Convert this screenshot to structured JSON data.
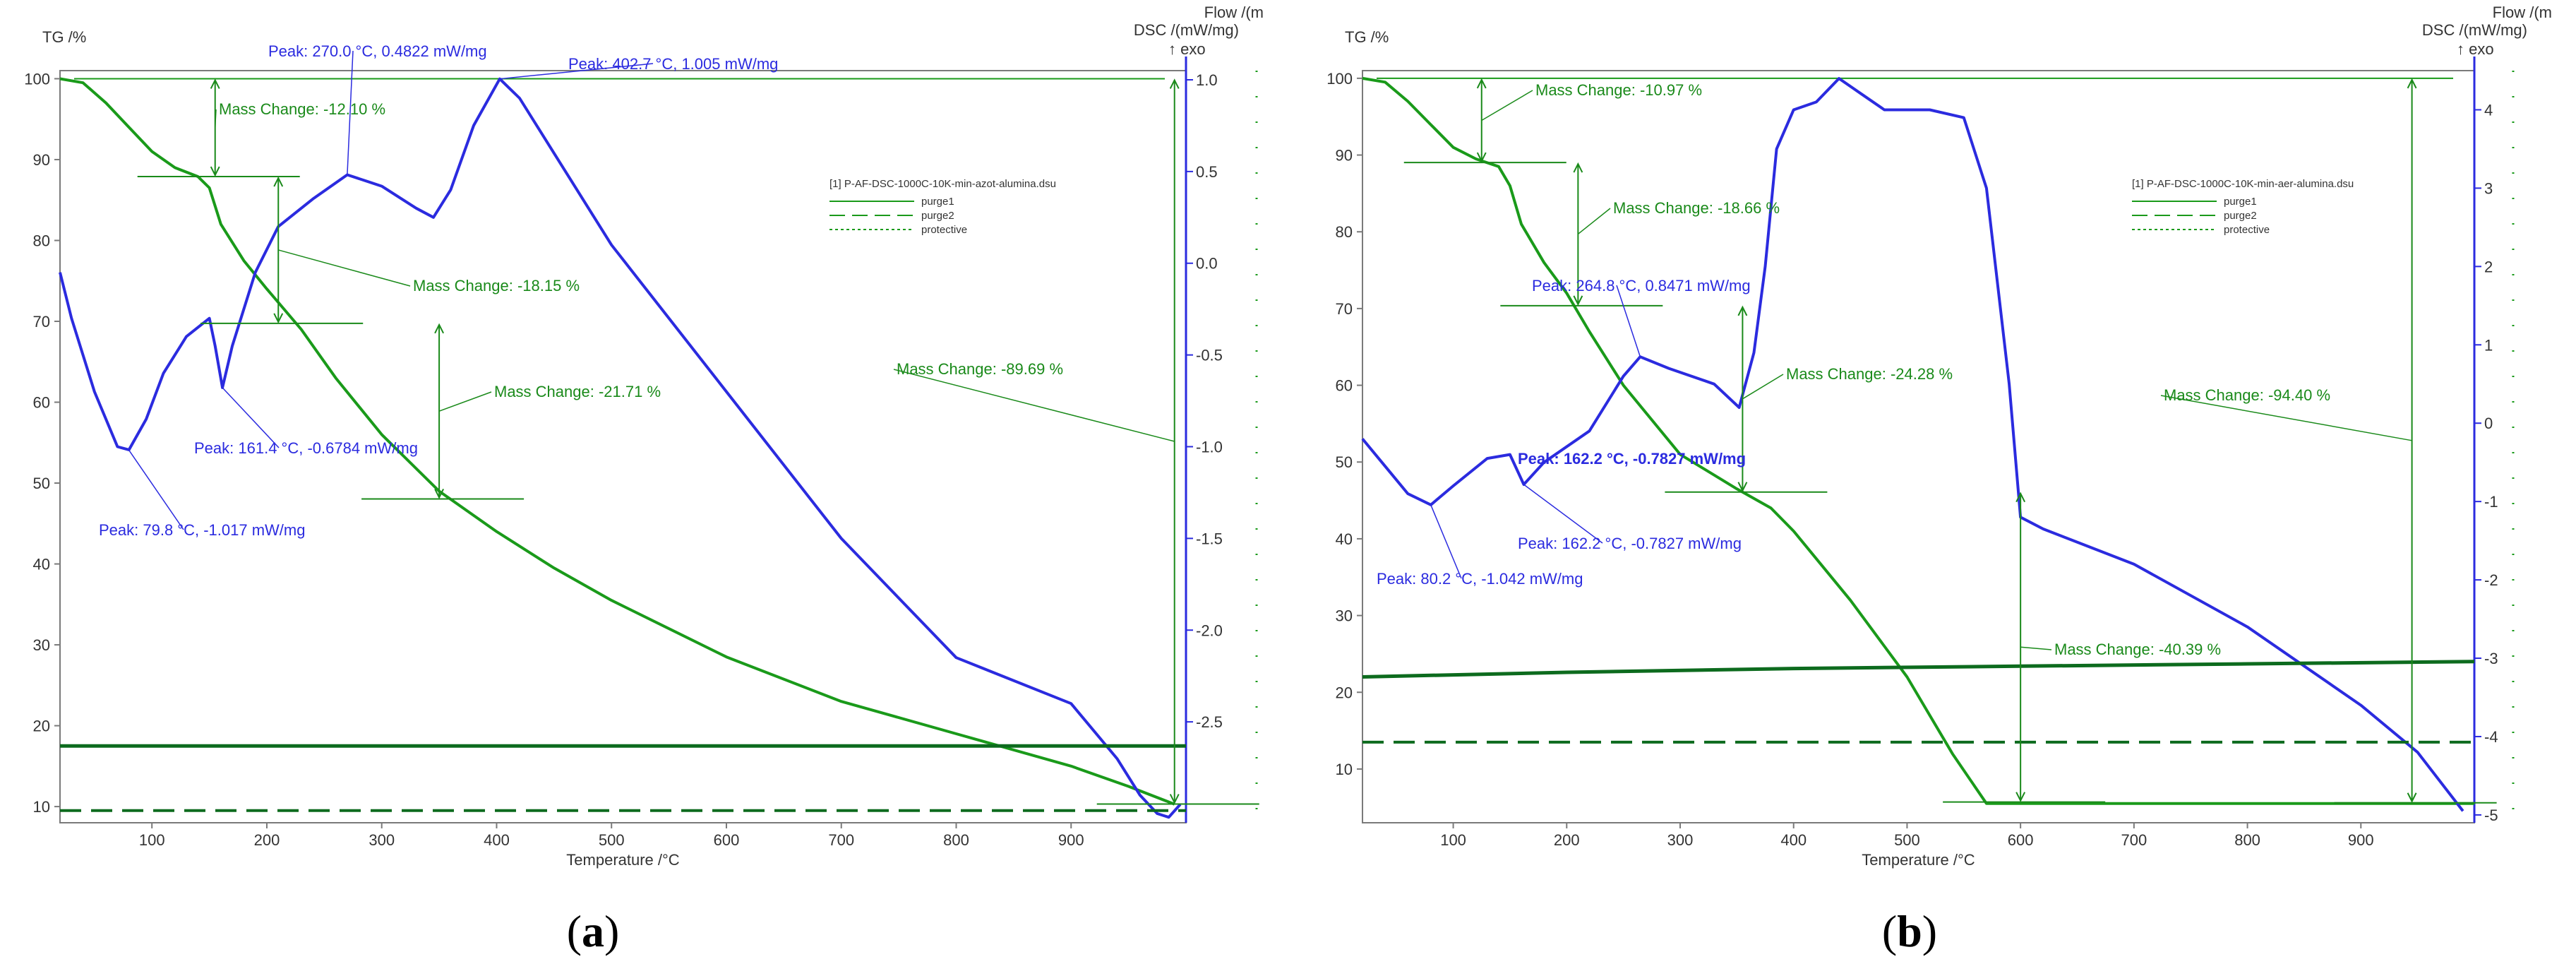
{
  "colors": {
    "tg": "#1a9a1a",
    "dsc": "#2b2bdf",
    "base": "#0d6b1e",
    "frame": "#7a7a7a",
    "ann_green": "#1a8a1a",
    "ann_blue": "#2b2bdf"
  },
  "chart_data": [
    {
      "type": "line",
      "panel_label_text": "a",
      "xlabel": "Temperature /°C",
      "ylabel_left": "TG /%",
      "ylabel_right_1": "Flow /(m",
      "ylabel_right_2": "DSC /(mW/mg)",
      "ylabel_right_3": "↑ exo",
      "xlim": [
        20,
        1000
      ],
      "ylim_left": [
        8,
        101
      ],
      "ylim_right": [
        -3.05,
        1.05
      ],
      "x_ticks": [
        100,
        200,
        300,
        400,
        500,
        600,
        700,
        800,
        900
      ],
      "y_left_ticks": [
        100,
        90,
        80,
        70,
        60,
        50,
        40,
        30,
        20,
        10
      ],
      "y_right_ticks": [
        1.0,
        0.5,
        0.0,
        -0.5,
        -1.0,
        -1.5,
        -2.0,
        -2.5
      ],
      "y_right_tick_labels": [
        "1.0",
        "0.5",
        "0.0",
        "-0.5",
        "-1.0",
        "-1.5",
        "-2.0",
        "-2.5"
      ],
      "legend": {
        "file": "[1] P-AF-DSC-1000C-10K-min-azot-alumina.dsu",
        "entries": [
          "purge1",
          "purge2",
          "protective"
        ]
      },
      "series": [
        {
          "name": "TG",
          "axis": "left",
          "x": [
            20,
            40,
            60,
            80,
            100,
            120,
            140,
            150,
            160,
            180,
            200,
            230,
            260,
            300,
            350,
            400,
            450,
            500,
            600,
            700,
            800,
            900,
            950,
            990
          ],
          "values": [
            100,
            99.5,
            97,
            94,
            91,
            89,
            87.9,
            86.5,
            82,
            77.5,
            74,
            69,
            63,
            56,
            49,
            44,
            39.5,
            35.5,
            28.5,
            23,
            19,
            15,
            12.5,
            10.3
          ]
        },
        {
          "name": "DSC",
          "axis": "right",
          "x": [
            20,
            30,
            50,
            70,
            80,
            95,
            110,
            130,
            150,
            155,
            161.4,
            170,
            190,
            210,
            240,
            270,
            300,
            330,
            345,
            360,
            380,
            402.7,
            420,
            450,
            500,
            600,
            700,
            800,
            900,
            940,
            960,
            975,
            985,
            995
          ],
          "values": [
            -0.05,
            -0.3,
            -0.7,
            -1.0,
            -1.017,
            -0.85,
            -0.6,
            -0.4,
            -0.3,
            -0.45,
            -0.678,
            -0.45,
            -0.05,
            0.2,
            0.35,
            0.4822,
            0.42,
            0.3,
            0.25,
            0.4,
            0.75,
            1.005,
            0.9,
            0.6,
            0.1,
            -0.7,
            -1.5,
            -2.15,
            -2.4,
            -2.7,
            -2.9,
            -3.0,
            -3.02,
            -2.95
          ]
        },
        {
          "name": "purge1",
          "axis": "left",
          "x": [
            20,
            1000
          ],
          "values": [
            17.5,
            17.5
          ]
        },
        {
          "name": "purge2",
          "axis": "left",
          "x": [
            20,
            1000
          ],
          "values": [
            9.5,
            9.5
          ]
        }
      ],
      "peaks": [
        {
          "x": 79.8,
          "y": -1.017,
          "label": "Peak: 79.8 °C, -1.017 mW/mg"
        },
        {
          "x": 161.4,
          "y": -0.6784,
          "label": "Peak: 161.4 °C, -0.6784 mW/mg"
        },
        {
          "x": 270.0,
          "y": 0.4822,
          "label": "Peak: 270.0 °C, 0.4822 mW/mg"
        },
        {
          "x": 402.7,
          "y": 1.005,
          "label": "Peak: 402.7 °C, 1.005 mW/mg"
        }
      ],
      "mass_changes": [
        {
          "label": "Mass Change: -12.10 %",
          "x": 155,
          "from": 100,
          "to": 87.9
        },
        {
          "label": "Mass Change: -18.15 %",
          "x": 210,
          "from": 87.9,
          "to": 69.75
        },
        {
          "label": "Mass Change: -21.71 %",
          "x": 350,
          "from": 69.75,
          "to": 48.04
        },
        {
          "label": "Mass Change: -89.69 %",
          "x": 990,
          "from": 100,
          "to": 10.31
        }
      ]
    },
    {
      "type": "line",
      "panel_label_text": "b",
      "xlabel": "Temperature /°C",
      "ylabel_left": "TG /%",
      "ylabel_right_1": "Flow /(m",
      "ylabel_right_2": "DSC /(mW/mg)",
      "ylabel_right_3": "↑ exo",
      "xlim": [
        20,
        1000
      ],
      "ylim_left": [
        3,
        101
      ],
      "ylim_right": [
        -5.1,
        4.5
      ],
      "x_ticks": [
        100,
        200,
        300,
        400,
        500,
        600,
        700,
        800,
        900
      ],
      "y_left_ticks": [
        100,
        90,
        80,
        70,
        60,
        50,
        40,
        30,
        20,
        10
      ],
      "y_right_ticks": [
        4,
        3,
        2,
        1,
        0,
        -1,
        -2,
        -3,
        -4,
        -5
      ],
      "y_right_tick_labels": [
        "4",
        "3",
        "2",
        "1",
        "0",
        "-1",
        "-2",
        "-3",
        "-4",
        "-5"
      ],
      "legend": {
        "file": "[1] P-AF-DSC-1000C-10K-min-aer-alumina.dsu",
        "entries": [
          "purge1",
          "purge2",
          "protective"
        ]
      },
      "series": [
        {
          "name": "TG",
          "axis": "left",
          "x": [
            20,
            40,
            60,
            80,
            100,
            120,
            140,
            150,
            160,
            180,
            200,
            220,
            250,
            300,
            350,
            380,
            400,
            450,
            500,
            540,
            570,
            600,
            700,
            800,
            900,
            1000
          ],
          "values": [
            100,
            99.5,
            97,
            94,
            91,
            89.5,
            88.5,
            86,
            81,
            76,
            72,
            67,
            60,
            51,
            46.5,
            44,
            41,
            32,
            22,
            12,
            5.5,
            5.5,
            5.5,
            5.5,
            5.5,
            5.5
          ]
        },
        {
          "name": "DSC",
          "axis": "right",
          "x": [
            20,
            40,
            60,
            80.2,
            100,
            130,
            150,
            162.2,
            180,
            220,
            250,
            264.8,
            290,
            330,
            352,
            365,
            375,
            385,
            400,
            420,
            440,
            460,
            480,
            520,
            550,
            570,
            590,
            600,
            620,
            700,
            800,
            900,
            950,
            990
          ],
          "values": [
            -0.2,
            -0.55,
            -0.9,
            -1.042,
            -0.8,
            -0.45,
            -0.4,
            -0.7827,
            -0.5,
            -0.1,
            0.6,
            0.8471,
            0.7,
            0.5,
            0.2,
            0.9,
            2.0,
            3.5,
            4.0,
            4.1,
            4.4,
            4.2,
            4.0,
            4.0,
            3.9,
            3.0,
            0.5,
            -1.2,
            -1.35,
            -1.8,
            -2.6,
            -3.6,
            -4.2,
            -4.95
          ]
        },
        {
          "name": "purge1",
          "axis": "left",
          "x": [
            20,
            200,
            400,
            600,
            800,
            1000
          ],
          "values": [
            22,
            22.6,
            23.1,
            23.4,
            23.7,
            24
          ]
        },
        {
          "name": "purge2",
          "axis": "left",
          "x": [
            20,
            1000
          ],
          "values": [
            13.5,
            13.5
          ]
        }
      ],
      "peaks": [
        {
          "x": 80.2,
          "y": -1.042,
          "label": "Peak: 80.2 °C, -1.042 mW/mg"
        },
        {
          "x": 162.2,
          "y": -0.7827,
          "label": "Peak: 162.2 °C, -0.7827 mW/mg"
        },
        {
          "x": 264.8,
          "y": 0.8471,
          "label": "Peak: 264.8 °C, 0.8471 mW/mg"
        }
      ],
      "peak_overlay_label": "Peak: 162.2 °C, -0.7827 mW/mg",
      "mass_changes": [
        {
          "label": "Mass Change: -10.97 %",
          "x": 125,
          "from": 100,
          "to": 89.03
        },
        {
          "label": "Mass Change: -18.66 %",
          "x": 210,
          "from": 89.03,
          "to": 70.37
        },
        {
          "label": "Mass Change: -24.28 %",
          "x": 355,
          "from": 70.37,
          "to": 46.09
        },
        {
          "label": "Mass Change: -40.39 %",
          "x": 600,
          "from": 46.09,
          "to": 5.7
        },
        {
          "label": "Mass Change: -94.40 %",
          "x": 945,
          "from": 100,
          "to": 5.6
        }
      ]
    }
  ]
}
